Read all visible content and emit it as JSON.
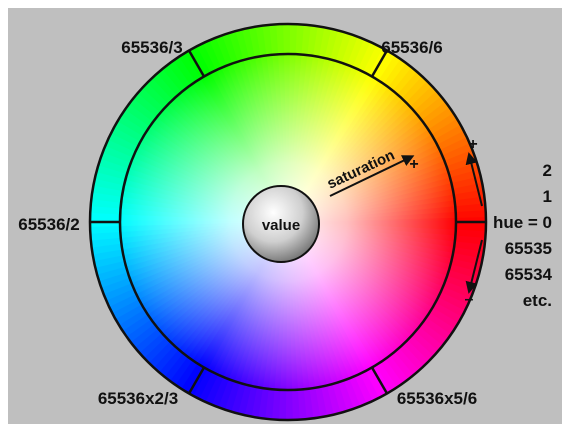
{
  "figure": {
    "ring_labels": {
      "third": "65536/3",
      "sixth": "65536/6",
      "half": "65536/2",
      "two_thirds": "65536x2/3",
      "five_sixths": "65536x5/6"
    },
    "value_label": "value",
    "saturation_label": "saturation",
    "saturation_plus": "+",
    "scale": {
      "plus": "+",
      "minus": "–",
      "items": [
        "2",
        "1",
        "hue = 0",
        "65535",
        "65534",
        "etc."
      ]
    }
  },
  "colors": {
    "background": "#bfbfbf",
    "outline": "#111111",
    "label": "#111111"
  }
}
